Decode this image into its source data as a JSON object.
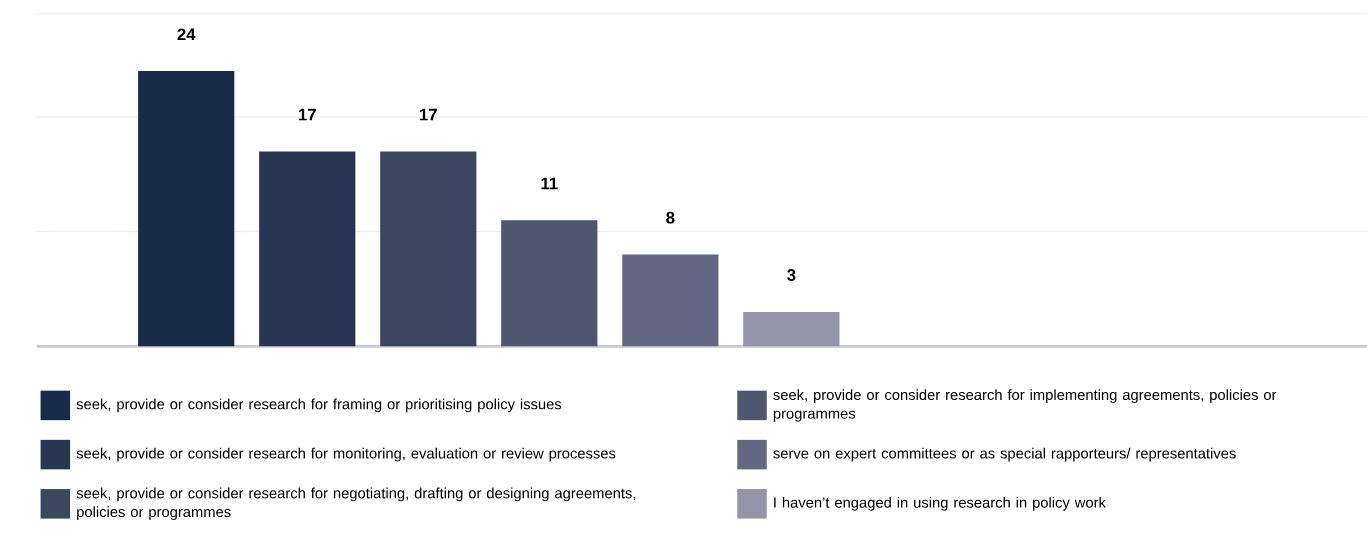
{
  "chart_data": {
    "type": "bar",
    "stacked": true,
    "categories": [
      null,
      null,
      null,
      null,
      null,
      null
    ],
    "series": [
      {
        "name": "seek, provide or consider research for framing or prioritising policy issues",
        "color": "#182b48",
        "values": [
          24,
          null,
          null,
          null,
          null,
          null
        ]
      },
      {
        "name": "seek, provide or consider research for monitoring, evaluation or review processes",
        "color": "#283653",
        "values": [
          null,
          17,
          null,
          null,
          null,
          null
        ]
      },
      {
        "name": "seek, provide or consider research for negotiating, drafting or designing agreements, policies or programmes",
        "color": "#3b465f",
        "values": [
          null,
          null,
          17,
          null,
          null,
          null
        ]
      },
      {
        "name": "seek, provide or consider research for implementing agreements, policies or programmes",
        "color": "#4f566f",
        "values": [
          null,
          null,
          null,
          11,
          null,
          null
        ]
      },
      {
        "name": "serve on expert committees or as special rapporteurs/ representatives",
        "color": "#646782",
        "values": [
          null,
          null,
          null,
          null,
          8,
          null
        ]
      },
      {
        "name": "I haven’t engaged in using research in policy work",
        "color": "#9394a7",
        "values": [
          null,
          null,
          null,
          null,
          null,
          3
        ]
      }
    ],
    "ylim": [
      0,
      29
    ],
    "yticks": [
      {
        "value": 0,
        "label": null
      },
      {
        "value": 10,
        "label": null
      },
      {
        "value": 20,
        "label": null
      },
      {
        "value": 29,
        "label": null
      }
    ],
    "grid": "y",
    "data_labels": true,
    "legend": "bottom"
  }
}
